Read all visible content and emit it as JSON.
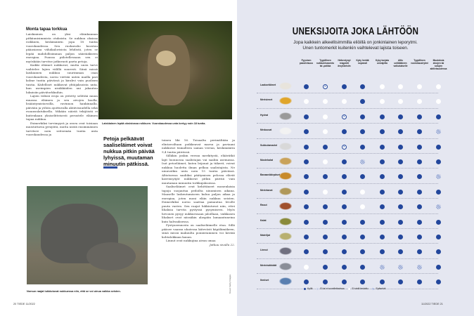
{
  "left": {
    "heading": "Monta tapaa torkkua",
    "col1": [
      "Laiskiainen on yksi eläinkunnan pitkäunisimmista otuksista. Se nukkuu oksissa roikkuen, keskimäärin jopa 18 tuntia vuorokaudessa. Sen ruokavalio koostuu pääasiassa vähäkalorisista lehdistä, joten se lepää mahdollisimman paljon säästääkseen energiaa. Puussa piilotellessaan sen ei myöskään tarvitse jatkuvasti paeta petoja.",
      "Kaikki eläimet nukkuvat, mutta unen tarve vaihtelee lajien välillä suuresti. Siinä missä laiskiainen nukkuu suurimman osan vuorokaudesta, norsu viettää unten mailla pari kolme tuntia päivässä ja kirahvi vain puolisen tuntia. Kädelliset nukkuvat yhtäjaksoista unta, kun useimpien nisäkkäiden uni jakautuu lukuisiin päivätorkkuihin.",
      "Lajien välisiä eroja on yritetty selittää muun muassa eläimen ja sen aivojen koolla, lisääntymistavoilla, ravinnon hankinnalla, päivään ja yöhön ajoittuvalla aktiivisuudella sekä ruoansulatuksella. Mikään näistä tekijöistä ei kuitenkaan yksiselitteisesti perustele eläimen tapaa nukkua.",
      "Esimerkiksi torvimyyrä ja orava ovat toisiaan muistuttavia jyrsijöitä, mutta niistä ensimmäinen tarvitsee noin seitsemän tuntia unta vuorokaudessa ja"
    ],
    "col2": [
      "toinen liki 16. Toisaalta perimältään ja elintavoiltaan poikkeavat marsu ja paviaani nukkuvat tismalleen saman verran, keskimäärin 9,4 tuntia päivässä.",
      "Silläkin jonkin verran merkitystä, eläävätkö lajit luonnossa saalistajan vai saaliin asemassa. Isot petoeläimet, kuten leijonat ja tiikerit, voivat nukkua huoletta ilman pelkoa saalistajista. Ne uinuvatkin unta noin 15 tuntia päivässä. Altistuessa saaliiksi päätymisen pelossa elävät kasvinsyöjät nukkuvat pitkin päivää vain muutaman minuutin torkkujaksoissa.",
      "Saaliseläimet ovat kehittäneet monenlaisia tapoja suojautua pedoilta uinumisen aikana. Maaselle laskeutumiseen kuluu paljon aikaa ja energiaa, joten moni eläin nukkuu seisten. Esimerkiksi norsu saattaa painautua levolle puuta vasten. Sen raajat lukkiutuvat niin, ettei lihaksia tarvita pystyssä pysymiseen. Myös hevonen pysyy nukkuessaan jaloillaan, vaikkasen lihakset ovat niissäkin alaspäin lamaantuneina kuin halvauksessa.",
      "Pystyasennosta on saaliseläimelle etua. Sillä pääsee vaaran uhatessa kätevästi käpälämäkeen, siinä missä makuulta ponnistaminen voi kestää kohtalokkaan kauan.",
      "Linnut ovat nukkujina aivan omaa"
    ],
    "continued": "Jatkuu sivulla 22.",
    "sloth_caption": "Laiskiainen lepää oksistossa roikkuen. Vuorokaudessa unta kertyy noin 18 tuntia.",
    "elephant_caption": "Norsun raajat lukkiutuvat nukkuessa niin, että se voi uinua vaikka seisten.",
    "pull_quote": "Petoja pelkäävät saaliseläimet voivat nukkua pitkin päivää lyhyissä, muutaman minuutin pätkissä.",
    "photo_credit": "Kuvat: Getty Images",
    "folio": "20  TIEDE 11/2022"
  },
  "right": {
    "title": "UNEKSIJOITA JOKA LÄHTÖÖN",
    "subtitle_1": "Jopa kaikkein alkeellisimmilla eliöillä on jonkinlainen leporytmi.",
    "subtitle_2": "Unen tuntomerkit kuitenkin vaihtelevat lajista toiseen.",
    "columns": [
      "Fyysinen passiivisuus",
      "Tyypillinen nukkumisasento tai -paikka",
      "Heikentynyt reagointi ärsykkeisiin",
      "Kyky herätä nopeasti",
      "Kyky korjata univajetta",
      "Altis unilääkkeen vaikutukselle",
      "Tyypillinen vuorokausirytmi",
      "Muutoksia aivojen tai solujen aktiivisuudessa"
    ],
    "rows": [
      {
        "label": "Laakoeläimet",
        "values": [
          "F",
          "X",
          "F",
          "F",
          "W",
          "W",
          "W",
          "W"
        ]
      },
      {
        "label": "Merisienet",
        "values": [
          "W",
          "W",
          "W",
          "F",
          "W",
          "W",
          "W",
          "W"
        ]
      },
      {
        "label": "Hydrat",
        "values": [
          "F",
          "W",
          "X",
          "F",
          "F",
          "F",
          "F",
          "F"
        ]
      },
      {
        "label": "Meduusat",
        "values": [
          "F",
          "W",
          "F",
          "F",
          "F",
          "F",
          "F",
          "H"
        ]
      },
      {
        "label": "Sukkulamadot",
        "values": [
          "F",
          "F",
          "X",
          "F",
          "F",
          "F",
          "F",
          "F"
        ]
      },
      {
        "label": "Mustekalat",
        "values": [
          "F",
          "W",
          "F",
          "H",
          "F",
          "F",
          "F",
          "F"
        ]
      },
      {
        "label": "Banaanikärpäset",
        "values": [
          "F",
          "F",
          "F",
          "F",
          "F",
          "F",
          "F",
          "H"
        ]
      },
      {
        "label": "Merietanat",
        "values": [
          "F",
          "W",
          "F",
          "W",
          "F",
          "F",
          "F",
          "F"
        ]
      },
      {
        "label": "Ravut",
        "values": [
          "F",
          "F",
          "F",
          "W",
          "F",
          "F",
          "F",
          "H"
        ]
      },
      {
        "label": "Kalat",
        "values": [
          "F",
          "F",
          "F",
          "F",
          "F",
          "F",
          "F",
          "F"
        ]
      },
      {
        "label": "Matelijat",
        "values": [
          "F",
          "F",
          "F",
          "F",
          "F",
          "F",
          "F",
          "F"
        ]
      },
      {
        "label": "Linnut",
        "values": [
          "F",
          "F",
          "F",
          "F",
          "F",
          "F",
          "F",
          "F"
        ]
      },
      {
        "label": "Merinisäkkäät",
        "values": [
          "W",
          "F",
          "F",
          "F",
          "H",
          "H",
          "H",
          "F"
        ]
      },
      {
        "label": "Ihmiset",
        "values": [
          "F",
          "F",
          "F",
          "F",
          "F",
          "F",
          "F",
          "F"
        ]
      }
    ],
    "legend": {
      "F": "Kyllä",
      "X": "Ei tai ei sovellettavissa",
      "W": "Ei vielä testattu",
      "H": "Epäselvä"
    },
    "colors": {
      "yes": "#23479c",
      "page": "#e5e7f1"
    },
    "folio": "11/2022  TIEDE  21"
  }
}
